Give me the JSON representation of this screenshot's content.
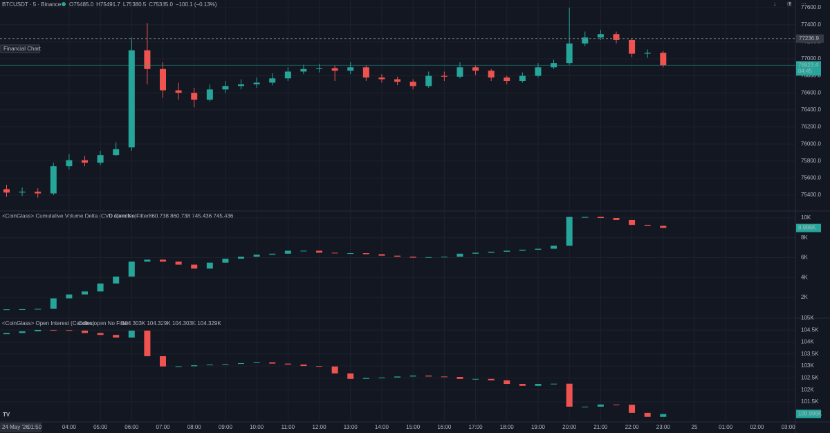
{
  "header": {
    "symbol": "BTCUSDT · 5 · Binance",
    "ohlc": [
      "O75485.0",
      "H75491.7",
      "L75380.5",
      "C75385.0",
      "−100.1 (−0.13%)"
    ],
    "tooltip": "Financial Chart",
    "date_label": "24 May '26",
    "time_label": "01:50"
  },
  "chart_data": [
    {
      "type": "candlestick",
      "up_color": "#26a69a",
      "down_color": "#ef5350",
      "grid": true,
      "x": [
        2,
        2.5,
        3,
        3.5,
        4,
        4.5,
        5,
        5.5,
        6,
        6.5,
        7,
        7.5,
        8,
        8.5,
        9,
        9.5,
        10,
        10.5,
        11,
        11.5,
        12,
        12.5,
        13,
        13.5,
        14,
        14.5,
        15,
        15.5,
        16,
        16.5,
        17,
        17.5,
        18,
        18.5,
        19,
        19.5,
        20,
        20.5,
        21,
        21.5,
        22,
        22.5,
        23
      ],
      "open": [
        75470,
        75430,
        75440,
        75420,
        75740,
        75810,
        75780,
        75870,
        75960,
        77100,
        76880,
        76630,
        76600,
        76520,
        76640,
        76680,
        76700,
        76720,
        76770,
        76850,
        76880,
        76890,
        76860,
        76900,
        76780,
        76760,
        76730,
        76680,
        76800,
        76790,
        76900,
        76860,
        76780,
        76740,
        76800,
        76900,
        76950,
        77180,
        77250,
        77290,
        77220,
        77060,
        77070
      ],
      "high": [
        75520,
        75490,
        75480,
        75780,
        75880,
        75860,
        75920,
        76020,
        77250,
        77420,
        76960,
        76720,
        76660,
        76700,
        76740,
        76760,
        76780,
        76830,
        76900,
        76930,
        76940,
        76920,
        76960,
        76920,
        76820,
        76790,
        76760,
        76850,
        76850,
        76960,
        76920,
        76880,
        76800,
        76840,
        76950,
        76990,
        77600,
        77320,
        77340,
        77320,
        77240,
        77110,
        77090
      ],
      "low": [
        75380,
        75390,
        75370,
        75400,
        75700,
        75740,
        75750,
        75860,
        75920,
        76700,
        76540,
        76520,
        76430,
        76500,
        76600,
        76640,
        76660,
        76690,
        76740,
        76820,
        76840,
        76740,
        76820,
        76740,
        76720,
        76690,
        76640,
        76660,
        76740,
        76770,
        76810,
        76740,
        76700,
        76720,
        76780,
        76880,
        76930,
        77150,
        77220,
        77180,
        77020,
        77010,
        76900
      ],
      "close": [
        75430,
        75440,
        75420,
        75740,
        75810,
        75780,
        75870,
        75940,
        77100,
        76880,
        76630,
        76600,
        76520,
        76640,
        76680,
        76700,
        76720,
        76770,
        76850,
        76880,
        76890,
        76860,
        76900,
        76780,
        76760,
        76730,
        76680,
        76800,
        76790,
        76900,
        76860,
        76780,
        76740,
        76800,
        76900,
        76950,
        77180,
        77250,
        77290,
        77220,
        77060,
        77070,
        76925
      ],
      "ylim": [
        75230,
        77690
      ],
      "yticks": [
        {
          "value": 77600,
          "label": "77600.0"
        },
        {
          "value": 77400,
          "label": "77400.0"
        },
        {
          "value": 77200,
          "label": "77200.0"
        },
        {
          "value": 77000,
          "label": "77000.0"
        },
        {
          "value": 76800,
          "label": "76800.0"
        },
        {
          "value": 76600,
          "label": "76600.0"
        },
        {
          "value": 76400,
          "label": "76400.0"
        },
        {
          "value": 76200,
          "label": "76200.0"
        },
        {
          "value": 76000,
          "label": "76000.0"
        },
        {
          "value": 75800,
          "label": "75800.0"
        },
        {
          "value": 75600,
          "label": "75600.0"
        },
        {
          "value": 75400,
          "label": "75400.0"
        }
      ],
      "hline": 77236.9,
      "last_price": 76923.4,
      "countdown": "04:45"
    },
    {
      "type": "candlestick",
      "up_color": "#26a69a",
      "down_color": "#ef5350",
      "grid": true,
      "title": "<CoinGlass> Cumulative Volume Delta (CVD Candles)",
      "subtitle": "0 open No Filter",
      "legend_values": "860.738  860.738  745.436  745.436",
      "x": [
        2,
        2.5,
        3,
        3.5,
        4,
        4.5,
        5,
        5.5,
        6,
        6.5,
        7,
        7.5,
        8,
        8.5,
        9,
        9.5,
        10,
        10.5,
        11,
        11.5,
        12,
        12.5,
        13,
        13.5,
        14,
        14.5,
        15,
        15.5,
        16,
        16.5,
        17,
        17.5,
        18,
        18.5,
        19,
        19.5,
        20,
        20.5,
        21,
        21.5,
        22,
        22.5,
        23
      ],
      "open": [
        0.78,
        0.8,
        0.82,
        0.85,
        1.9,
        2.3,
        2.6,
        3.4,
        4.1,
        5.6,
        5.8,
        5.6,
        5.3,
        4.9,
        5.5,
        5.9,
        6.1,
        6.3,
        6.4,
        6.7,
        6.7,
        6.5,
        6.45,
        6.45,
        6.35,
        6.2,
        6.1,
        6.0,
        6.05,
        6.1,
        6.4,
        6.5,
        6.6,
        6.7,
        6.8,
        6.9,
        7.2,
        10.1,
        10.1,
        10.0,
        9.8,
        9.3,
        9.2
      ],
      "close": [
        0.8,
        0.82,
        0.85,
        1.9,
        2.3,
        2.6,
        3.4,
        4.1,
        5.6,
        5.8,
        5.6,
        5.3,
        4.9,
        5.5,
        5.9,
        6.1,
        6.3,
        6.4,
        6.7,
        6.7,
        6.5,
        6.45,
        6.45,
        6.35,
        6.2,
        6.1,
        6.0,
        6.05,
        6.1,
        6.4,
        6.5,
        6.6,
        6.7,
        6.8,
        6.9,
        7.2,
        10.1,
        10.1,
        10.0,
        9.8,
        9.3,
        9.2,
        8.99
      ],
      "ylim": [
        -0.09,
        10.7
      ],
      "yticks": [
        {
          "value": 10,
          "label": "10K"
        },
        {
          "value": 8,
          "label": "8K"
        },
        {
          "value": 6,
          "label": "6K"
        },
        {
          "value": 4,
          "label": "4K"
        },
        {
          "value": 2,
          "label": "2K"
        }
      ],
      "last_value": {
        "value": 8.986,
        "label": "8.986K"
      }
    },
    {
      "type": "candlestick",
      "up_color": "#26a69a",
      "down_color": "#ef5350",
      "grid": true,
      "title": "<CoinGlass> Open Interest (Candles)",
      "subtitle": "Coins open No Filter",
      "legend_values": "104.303K  104.329K  104.303K  104.329K",
      "x": [
        2,
        2.5,
        3,
        3.5,
        4,
        4.5,
        5,
        5.5,
        6,
        6.5,
        7,
        7.5,
        8,
        8.5,
        9,
        9.5,
        10,
        10.5,
        11,
        11.5,
        12,
        12.5,
        13,
        13.5,
        14,
        14.5,
        15,
        15.5,
        16,
        16.5,
        17,
        17.5,
        18,
        18.5,
        19,
        19.5,
        20,
        20.5,
        21,
        21.5,
        22,
        22.5,
        23
      ],
      "open": [
        104.33,
        104.38,
        104.45,
        104.51,
        104.5,
        104.48,
        104.38,
        104.3,
        104.19,
        104.48,
        103.41,
        102.98,
        102.99,
        103.03,
        103.06,
        103.09,
        103.12,
        103.15,
        103.1,
        103.06,
        103.0,
        102.98,
        102.69,
        102.46,
        102.5,
        102.52,
        102.56,
        102.6,
        102.56,
        102.54,
        102.46,
        102.46,
        102.4,
        102.25,
        102.17,
        102.25,
        102.26,
        101.3,
        101.3,
        101.39,
        101.38,
        101.04,
        100.87
      ],
      "close": [
        104.38,
        104.45,
        104.51,
        104.5,
        104.48,
        104.38,
        104.3,
        104.19,
        104.48,
        103.41,
        102.98,
        102.99,
        103.03,
        103.06,
        103.09,
        103.12,
        103.15,
        103.1,
        103.06,
        103.0,
        102.98,
        102.69,
        102.46,
        102.5,
        102.52,
        102.56,
        102.6,
        102.56,
        102.54,
        102.46,
        102.46,
        102.4,
        102.25,
        102.17,
        102.25,
        102.26,
        101.3,
        101.3,
        101.39,
        101.38,
        101.04,
        100.87,
        100.99
      ],
      "ylim": [
        100.66,
        105
      ],
      "yticks": [
        {
          "value": 105,
          "label": "105K"
        },
        {
          "value": 104.5,
          "label": "104.5K"
        },
        {
          "value": 104,
          "label": "104K"
        },
        {
          "value": 103.5,
          "label": "103.5K"
        },
        {
          "value": 103,
          "label": "103K"
        },
        {
          "value": 102.5,
          "label": "102.5K"
        },
        {
          "value": 102,
          "label": "102K"
        },
        {
          "value": 101.5,
          "label": "101.5K"
        }
      ],
      "last_value": {
        "value": 100.996,
        "label": "100.996K"
      },
      "xlim": [
        1.79,
        27.23
      ],
      "xticks": [
        {
          "value": 4,
          "label": "04:00"
        },
        {
          "value": 5,
          "label": "05:00"
        },
        {
          "value": 6,
          "label": "06:00"
        },
        {
          "value": 7,
          "label": "07:00"
        },
        {
          "value": 8,
          "label": "08:00"
        },
        {
          "value": 9,
          "label": "09:00"
        },
        {
          "value": 10,
          "label": "10:00"
        },
        {
          "value": 11,
          "label": "11:00"
        },
        {
          "value": 12,
          "label": "12:00"
        },
        {
          "value": 13,
          "label": "13:00"
        },
        {
          "value": 14,
          "label": "14:00"
        },
        {
          "value": 15,
          "label": "15:00"
        },
        {
          "value": 16,
          "label": "16:00"
        },
        {
          "value": 17,
          "label": "17:00"
        },
        {
          "value": 18,
          "label": "18:00"
        },
        {
          "value": 19,
          "label": "19:00"
        },
        {
          "value": 20,
          "label": "20:00"
        },
        {
          "value": 21,
          "label": "21:00"
        },
        {
          "value": 22,
          "label": "22:00"
        },
        {
          "value": 23,
          "label": "23:00"
        },
        {
          "value": 24,
          "label": "25"
        },
        {
          "value": 25,
          "label": "01:00"
        },
        {
          "value": 26,
          "label": "02:00"
        },
        {
          "value": 27,
          "label": "03:00"
        }
      ]
    }
  ]
}
